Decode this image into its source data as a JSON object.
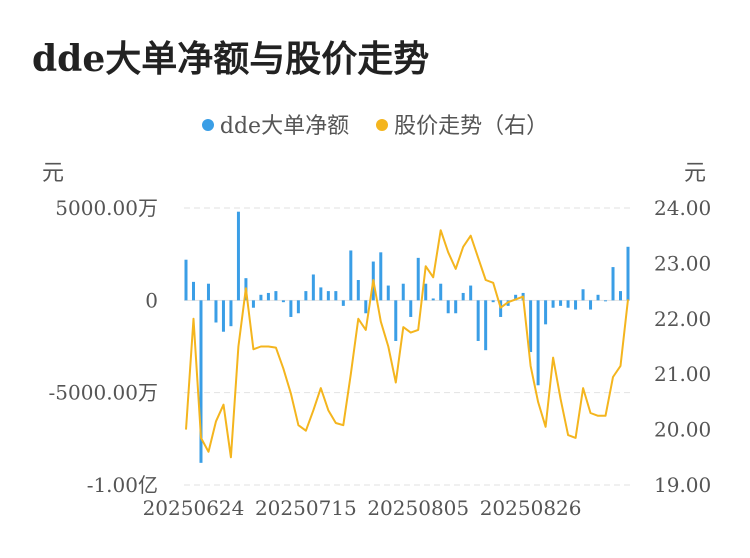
{
  "chart_data": {
    "type": "bar+line",
    "title": "dde大单净额与股价走势",
    "legend": [
      {
        "name": "dde大单净额",
        "color": "#3a9ee6"
      },
      {
        "name": "股价走势（右）",
        "color": "#f4b51e"
      }
    ],
    "left_unit": "元",
    "right_unit": "元",
    "left_ticks": [
      {
        "value": 5000,
        "label": "5000.00万"
      },
      {
        "value": 0,
        "label": "0"
      },
      {
        "value": -5000,
        "label": "-5000.00万"
      },
      {
        "value": -10000,
        "label": "-1.00亿"
      }
    ],
    "left_ylim": [
      -10000,
      5000
    ],
    "right_ticks": [
      "24.00",
      "23.00",
      "22.00",
      "21.00",
      "20.00",
      "19.00"
    ],
    "right_ylim": [
      19,
      24
    ],
    "x_tick_labels": [
      "20250624",
      "20250715",
      "20250805",
      "20250826"
    ],
    "x_tick_index": [
      1,
      16,
      31,
      46
    ],
    "grid": true,
    "series": [
      {
        "name": "dde大单净额",
        "type": "bar",
        "values": [
          2200,
          1000,
          -8800,
          900,
          -1200,
          -1700,
          -1400,
          4800,
          1200,
          -400,
          300,
          400,
          500,
          -100,
          -900,
          -700,
          500,
          1400,
          700,
          500,
          500,
          -300,
          2700,
          1100,
          -700,
          2100,
          2600,
          800,
          -2200,
          900,
          -900,
          2300,
          900,
          100,
          900,
          -700,
          -700,
          400,
          800,
          -2200,
          -2700,
          -100,
          -900,
          -300,
          300,
          400,
          -2800,
          -4600,
          -1300,
          -400,
          -300,
          -400,
          -500,
          600,
          -500,
          300,
          0,
          1800,
          500,
          2900
        ]
      },
      {
        "name": "股价走势（右）",
        "type": "line",
        "axis": "right",
        "values": [
          20.0,
          22.0,
          19.85,
          19.6,
          20.15,
          20.45,
          19.5,
          21.5,
          22.55,
          21.45,
          21.5,
          21.5,
          21.48,
          21.1,
          20.65,
          20.08,
          19.98,
          20.35,
          20.75,
          20.35,
          20.12,
          20.08,
          21.0,
          22.0,
          21.8,
          22.7,
          21.95,
          21.5,
          20.85,
          21.85,
          21.75,
          21.8,
          22.95,
          22.75,
          23.6,
          23.2,
          22.9,
          23.3,
          23.5,
          23.1,
          22.7,
          22.65,
          22.2,
          22.3,
          22.35,
          22.4,
          21.15,
          20.5,
          20.05,
          21.3,
          20.55,
          19.9,
          19.85,
          20.75,
          20.3,
          20.25,
          20.25,
          20.95,
          21.15,
          22.35
        ]
      }
    ]
  }
}
